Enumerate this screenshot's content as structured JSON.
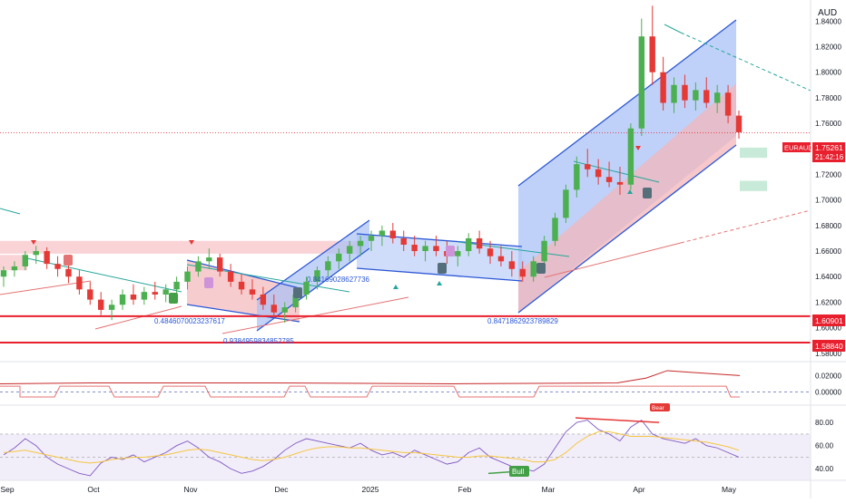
{
  "chart_data": {
    "type": "candlestick",
    "symbol": "EURAUD",
    "currency_label": "AUD",
    "last_price_label": "1.75261",
    "countdown_label": "21:42:16",
    "last_price": 1.75261,
    "x_labels": [
      "Sep",
      "Oct",
      "Nov",
      "Dec",
      "2025",
      "Feb",
      "Mar",
      "Apr",
      "May"
    ],
    "main_axis": {
      "ticks": [
        "1.84000",
        "1.82000",
        "1.80000",
        "1.78000",
        "1.76000",
        "1.74000",
        "1.72000",
        "1.70000",
        "1.68000",
        "1.66000",
        "1.64000",
        "1.62000",
        "1.60000",
        "1.58000"
      ],
      "range": [
        1.5735,
        1.8565
      ]
    },
    "support_levels": [
      {
        "label": "1.60901",
        "value": 1.60901,
        "color": "#e8202e"
      },
      {
        "label": "1.58840",
        "value": 1.5884,
        "color": "#e8202e"
      }
    ],
    "channel_annotations": [
      "0.4846070023237617",
      "0.9384959834852785",
      "0.8416902862773​6",
      "0.8471862923789829"
    ],
    "channel_annotation_text": [
      "0.4846070023237617",
      "0.9384959834852785",
      "0.84169028627736",
      "0.8471862923789829"
    ],
    "indicator1_axis": {
      "ticks": [
        "0.02000",
        "0.00000"
      ],
      "range": [
        -0.016,
        0.037
      ]
    },
    "rsi_axis": {
      "ticks": [
        "80.00",
        "60.00",
        "40.00"
      ],
      "range": [
        30,
        95
      ]
    },
    "rsi_badges": [
      "Bull",
      "Bear"
    ],
    "colors": {
      "up": "#4caf50",
      "down": "#e53935",
      "channel_blue": "#2a57d6",
      "support": "#e8202e",
      "rsi": "#7e57c2",
      "rsi_ma": "#f5c542"
    },
    "candles": [
      [
        1.64,
        1.648,
        1.632,
        1.645
      ],
      [
        1.645,
        1.652,
        1.64,
        1.648
      ],
      [
        1.648,
        1.66,
        1.645,
        1.657
      ],
      [
        1.657,
        1.664,
        1.65,
        1.66
      ],
      [
        1.66,
        1.663,
        1.646,
        1.65
      ],
      [
        1.65,
        1.656,
        1.64,
        1.646
      ],
      [
        1.646,
        1.652,
        1.635,
        1.64
      ],
      [
        1.64,
        1.645,
        1.626,
        1.63
      ],
      [
        1.63,
        1.636,
        1.618,
        1.622
      ],
      [
        1.622,
        1.628,
        1.61,
        1.614
      ],
      [
        1.614,
        1.622,
        1.606,
        1.618
      ],
      [
        1.618,
        1.63,
        1.614,
        1.626
      ],
      [
        1.626,
        1.634,
        1.618,
        1.622
      ],
      [
        1.622,
        1.632,
        1.618,
        1.628
      ],
      [
        1.628,
        1.636,
        1.622,
        1.626
      ],
      [
        1.626,
        1.634,
        1.62,
        1.63
      ],
      [
        1.63,
        1.64,
        1.626,
        1.636
      ],
      [
        1.636,
        1.648,
        1.63,
        1.644
      ],
      [
        1.644,
        1.656,
        1.64,
        1.652
      ],
      [
        1.652,
        1.662,
        1.646,
        1.655
      ],
      [
        1.655,
        1.658,
        1.64,
        1.644
      ],
      [
        1.644,
        1.65,
        1.632,
        1.636
      ],
      [
        1.636,
        1.642,
        1.626,
        1.63
      ],
      [
        1.63,
        1.638,
        1.622,
        1.626
      ],
      [
        1.626,
        1.632,
        1.614,
        1.618
      ],
      [
        1.618,
        1.626,
        1.608,
        1.612
      ],
      [
        1.612,
        1.62,
        1.604,
        1.616
      ],
      [
        1.616,
        1.63,
        1.612,
        1.626
      ],
      [
        1.626,
        1.64,
        1.622,
        1.636
      ],
      [
        1.636,
        1.648,
        1.63,
        1.645
      ],
      [
        1.645,
        1.656,
        1.64,
        1.652
      ],
      [
        1.652,
        1.662,
        1.646,
        1.658
      ],
      [
        1.658,
        1.668,
        1.652,
        1.664
      ],
      [
        1.664,
        1.672,
        1.656,
        1.668
      ],
      [
        1.668,
        1.676,
        1.66,
        1.672
      ],
      [
        1.672,
        1.68,
        1.664,
        1.676
      ],
      [
        1.676,
        1.682,
        1.666,
        1.67
      ],
      [
        1.67,
        1.676,
        1.66,
        1.665
      ],
      [
        1.665,
        1.672,
        1.656,
        1.66
      ],
      [
        1.66,
        1.668,
        1.652,
        1.664
      ],
      [
        1.664,
        1.672,
        1.656,
        1.66
      ],
      [
        1.66,
        1.668,
        1.65,
        1.656
      ],
      [
        1.656,
        1.664,
        1.648,
        1.66
      ],
      [
        1.66,
        1.674,
        1.656,
        1.67
      ],
      [
        1.67,
        1.676,
        1.658,
        1.662
      ],
      [
        1.662,
        1.668,
        1.65,
        1.656
      ],
      [
        1.656,
        1.664,
        1.648,
        1.652
      ],
      [
        1.652,
        1.66,
        1.64,
        1.646
      ],
      [
        1.646,
        1.652,
        1.636,
        1.64
      ],
      [
        1.64,
        1.656,
        1.636,
        1.652
      ],
      [
        1.652,
        1.672,
        1.648,
        1.668
      ],
      [
        1.668,
        1.69,
        1.664,
        1.686
      ],
      [
        1.686,
        1.712,
        1.682,
        1.708
      ],
      [
        1.708,
        1.734,
        1.702,
        1.728
      ],
      [
        1.728,
        1.74,
        1.718,
        1.724
      ],
      [
        1.724,
        1.732,
        1.712,
        1.718
      ],
      [
        1.718,
        1.73,
        1.71,
        1.714
      ],
      [
        1.714,
        1.726,
        1.704,
        1.712
      ],
      [
        1.712,
        1.76,
        1.708,
        1.756
      ],
      [
        1.756,
        1.842,
        1.75,
        1.828
      ],
      [
        1.828,
        1.852,
        1.79,
        1.8
      ],
      [
        1.8,
        1.812,
        1.77,
        1.776
      ],
      [
        1.776,
        1.796,
        1.768,
        1.79
      ],
      [
        1.79,
        1.798,
        1.772,
        1.778
      ],
      [
        1.778,
        1.792,
        1.77,
        1.786
      ],
      [
        1.786,
        1.796,
        1.772,
        1.776
      ],
      [
        1.776,
        1.79,
        1.768,
        1.784
      ],
      [
        1.784,
        1.79,
        1.76,
        1.766
      ],
      [
        1.766,
        1.77,
        1.748,
        1.753
      ]
    ]
  }
}
